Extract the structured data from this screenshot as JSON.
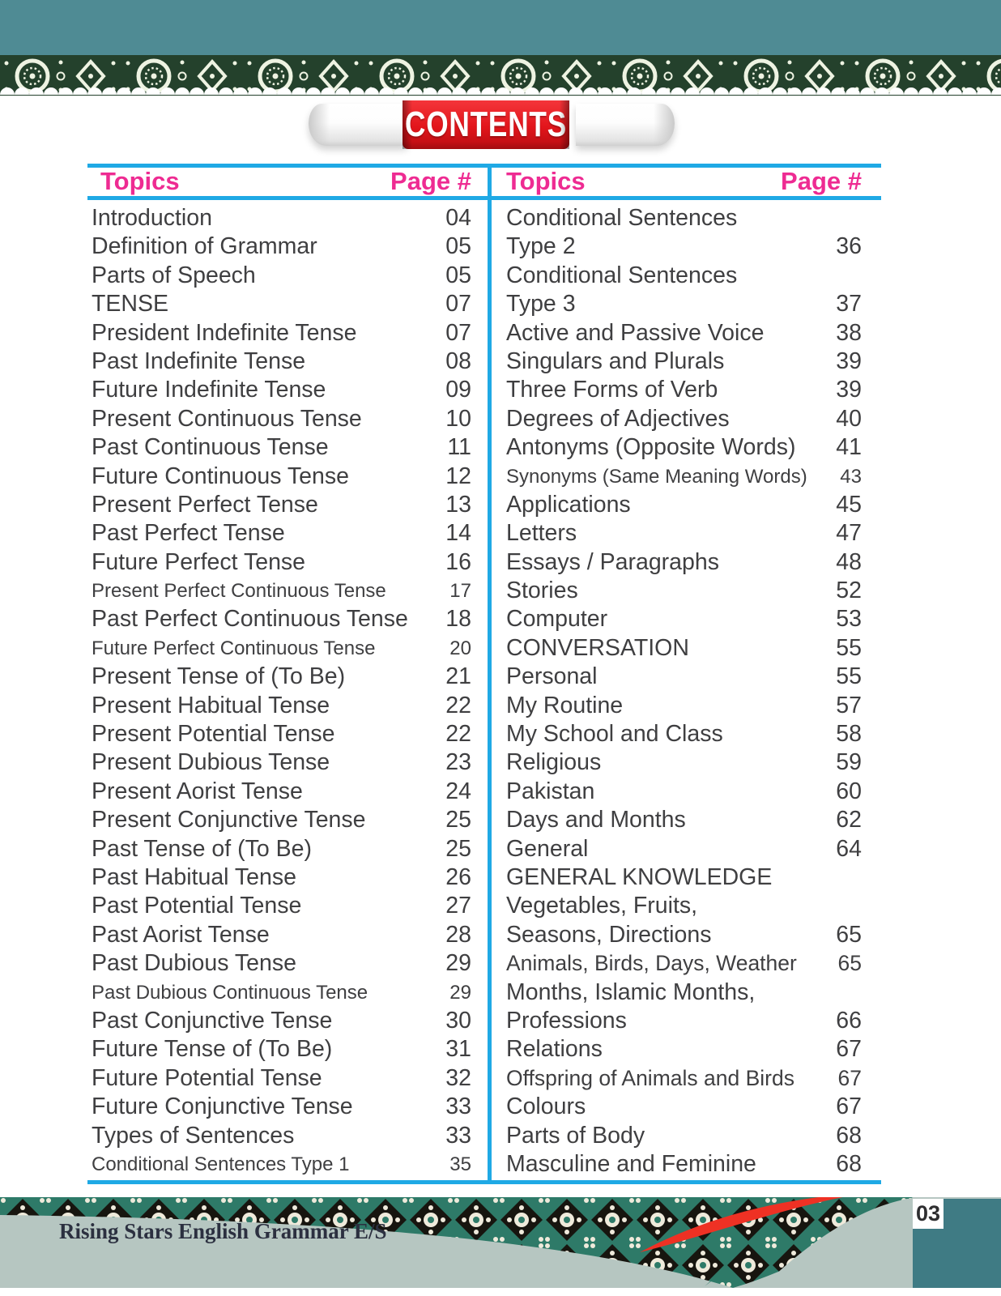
{
  "ribbon": {
    "label": "CONTENTS"
  },
  "table": {
    "columns": [
      {
        "topics_header": "Topics",
        "page_header": "Page #",
        "rows": [
          {
            "topic": "Introduction",
            "page": "04"
          },
          {
            "topic": "Definition of Grammar",
            "page": "05"
          },
          {
            "topic": "Parts of Speech",
            "page": "05"
          },
          {
            "topic": "TENSE",
            "page": "07"
          },
          {
            "topic": "President Indefinite Tense",
            "page": "07"
          },
          {
            "topic": "Past Indefinite Tense",
            "page": "08"
          },
          {
            "topic": "Future Indefinite Tense",
            "page": "09"
          },
          {
            "topic": "Present Continuous Tense",
            "page": "10"
          },
          {
            "topic": "Past Continuous Tense",
            "page": "11"
          },
          {
            "topic": "Future Continuous Tense",
            "page": "12"
          },
          {
            "topic": "Present Perfect Tense",
            "page": "13"
          },
          {
            "topic": "Past Perfect Tense",
            "page": "14"
          },
          {
            "topic": "Future Perfect Tense",
            "page": "16"
          },
          {
            "topic": "Present Perfect Continuous Tense",
            "page": "17",
            "size": "sm"
          },
          {
            "topic": "Past Perfect Continuous Tense",
            "page": "18"
          },
          {
            "topic": "Future Perfect Continuous Tense",
            "page": "20",
            "size": "sm"
          },
          {
            "topic": "Present Tense of (To Be)",
            "page": "21"
          },
          {
            "topic": "Present Habitual Tense",
            "page": "22"
          },
          {
            "topic": "Present Potential Tense",
            "page": "22"
          },
          {
            "topic": "Present Dubious Tense",
            "page": "23"
          },
          {
            "topic": "Present Aorist Tense",
            "page": "24"
          },
          {
            "topic": "Present Conjunctive Tense",
            "page": "25"
          },
          {
            "topic": "Past Tense of (To Be)",
            "page": "25"
          },
          {
            "topic": "Past Habitual Tense",
            "page": "26"
          },
          {
            "topic": "Past Potential Tense",
            "page": "27"
          },
          {
            "topic": "Past Aorist Tense",
            "page": "28"
          },
          {
            "topic": "Past Dubious Tense",
            "page": "29"
          },
          {
            "topic": "Past Dubious Continuous Tense",
            "page": "29",
            "size": "sm"
          },
          {
            "topic": "Past Conjunctive Tense",
            "page": "30"
          },
          {
            "topic": "Future Tense of (To Be)",
            "page": "31"
          },
          {
            "topic": "Future Potential Tense",
            "page": "32"
          },
          {
            "topic": "Future Conjunctive Tense",
            "page": "33"
          },
          {
            "topic": "Types of Sentences",
            "page": "33"
          },
          {
            "topic": "Conditional Sentences Type 1",
            "page": "35",
            "size": "sm"
          }
        ]
      },
      {
        "topics_header": "Topics",
        "page_header": "Page #",
        "rows": [
          {
            "topic": "Conditional Sentences",
            "page": ""
          },
          {
            "topic": "Type 2",
            "page": "36"
          },
          {
            "topic": "Conditional Sentences",
            "page": ""
          },
          {
            "topic": "Type 3",
            "page": "37"
          },
          {
            "topic": "Active and Passive Voice",
            "page": "38"
          },
          {
            "topic": "Singulars and Plurals",
            "page": "39"
          },
          {
            "topic": "Three Forms of Verb",
            "page": "39"
          },
          {
            "topic": "Degrees of Adjectives",
            "page": "40"
          },
          {
            "topic": "Antonyms (Opposite Words)",
            "page": "41"
          },
          {
            "topic": "Synonyms (Same Meaning Words)",
            "page": "43",
            "size": "sm"
          },
          {
            "topic": "Applications",
            "page": "45"
          },
          {
            "topic": "Letters",
            "page": "47"
          },
          {
            "topic": "Essays / Paragraphs",
            "page": "48"
          },
          {
            "topic": "Stories",
            "page": "52"
          },
          {
            "topic": "Computer",
            "page": "53"
          },
          {
            "topic": "CONVERSATION",
            "page": "55"
          },
          {
            "topic": "Personal",
            "page": "55"
          },
          {
            "topic": "My Routine",
            "page": "57"
          },
          {
            "topic": "My School and Class",
            "page": "58"
          },
          {
            "topic": "Religious",
            "page": "59"
          },
          {
            "topic": "Pakistan",
            "page": "60"
          },
          {
            "topic": "Days and Months",
            "page": "62"
          },
          {
            "topic": "General",
            "page": "64"
          },
          {
            "topic": "GENERAL KNOWLEDGE",
            "page": ""
          },
          {
            "topic": "Vegetables, Fruits,",
            "page": ""
          },
          {
            "topic": "Seasons, Directions",
            "page": "65"
          },
          {
            "topic": "Animals, Birds, Days, Weather",
            "page": "65",
            "size": "md"
          },
          {
            "topic": "Months, Islamic Months,",
            "page": ""
          },
          {
            "topic": "Professions",
            "page": "66"
          },
          {
            "topic": "Relations",
            "page": "67"
          },
          {
            "topic": "Offspring of Animals and Birds",
            "page": "67",
            "size": "md"
          },
          {
            "topic": "Colours",
            "page": "67"
          },
          {
            "topic": "Parts of Body",
            "page": "68"
          },
          {
            "topic": "Masculine and Feminine",
            "page": "68"
          }
        ]
      }
    ]
  },
  "footer": {
    "book_title": "Rising Stars English Grammar E/S",
    "page_number": "03"
  },
  "colors": {
    "accent_pink": "#ee2b92",
    "line_cyan": "#1fa9e5",
    "ribbon_red": "#e2151b",
    "band_teal": "#4f8b94",
    "band_green": "#24412c",
    "footer_sage": "#b6c6c1",
    "footer_teal_block": "#3f7b84",
    "footer_pattern_teal": "#2e7a68",
    "text_gray": "#3f3f41"
  }
}
